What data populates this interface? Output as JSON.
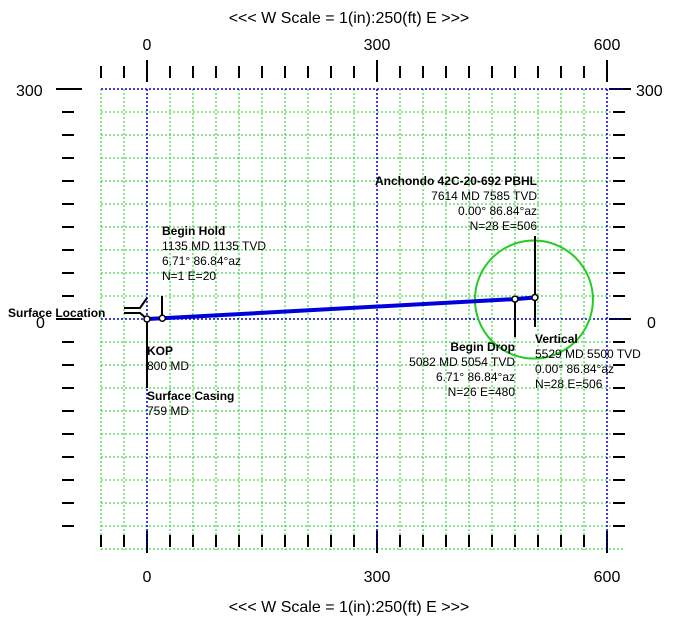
{
  "plot": {
    "title_top": "<<<  W   Scale = 1(in):250(ft)   E  >>>",
    "title_bottom": "<<<  W   Scale = 1(in):250(ft)   E  >>>",
    "x_axis": {
      "ticks": [
        "0",
        "300",
        "600"
      ],
      "range": [
        -60,
        600
      ]
    },
    "y_axis": {
      "ticks": [
        "300",
        "0"
      ],
      "range": [
        -300,
        300
      ]
    },
    "grid": "on",
    "colors": {
      "grid": "#22cc22",
      "axes": "#0000cc",
      "wellpath": "#0000dd",
      "target": "#22cc22",
      "frame": "#000000"
    }
  },
  "annotations": [
    {
      "id": "surface-location",
      "lines": [
        "Surface Location"
      ],
      "bold": [
        true
      ]
    },
    {
      "id": "kop",
      "lines": [
        "KOP",
        "800 MD"
      ],
      "bold": [
        true,
        false
      ]
    },
    {
      "id": "surface-casing",
      "lines": [
        "Surface Casing",
        "759 MD"
      ],
      "bold": [
        true,
        false
      ]
    },
    {
      "id": "begin-hold",
      "lines": [
        "Begin Hold",
        "1135 MD  1135 TVD",
        "6.71°  86.84°az",
        "N=1 E=20"
      ],
      "bold": [
        true,
        false,
        false,
        false
      ]
    },
    {
      "id": "pbhl",
      "lines": [
        "Anchondo 42C-20-692 PBHL",
        "7614 MD  7585 TVD",
        "0.00°  86.84°az",
        "N=28 E=506"
      ],
      "bold": [
        true,
        false,
        false,
        false
      ]
    },
    {
      "id": "begin-drop",
      "lines": [
        "Begin Drop",
        "5082 MD  5054 TVD",
        "6.71°  86.84°az",
        "N=26 E=480"
      ],
      "bold": [
        true,
        false,
        false,
        false
      ]
    },
    {
      "id": "vertical",
      "lines": [
        "Vertical",
        "5529 MD  5500 TVD",
        "0.00°  86.84°az",
        "N=28 E=506"
      ],
      "bold": [
        true,
        false,
        false,
        false
      ]
    }
  ],
  "well_points": [
    {
      "name": "surface",
      "e": 0,
      "n": 0
    },
    {
      "name": "begin-hold",
      "e": 20,
      "n": 1
    },
    {
      "name": "begin-drop",
      "e": 480,
      "n": 26
    },
    {
      "name": "vertical",
      "e": 506,
      "n": 28
    }
  ],
  "target": {
    "e": 506,
    "n": 28,
    "radius_ft": 150
  }
}
